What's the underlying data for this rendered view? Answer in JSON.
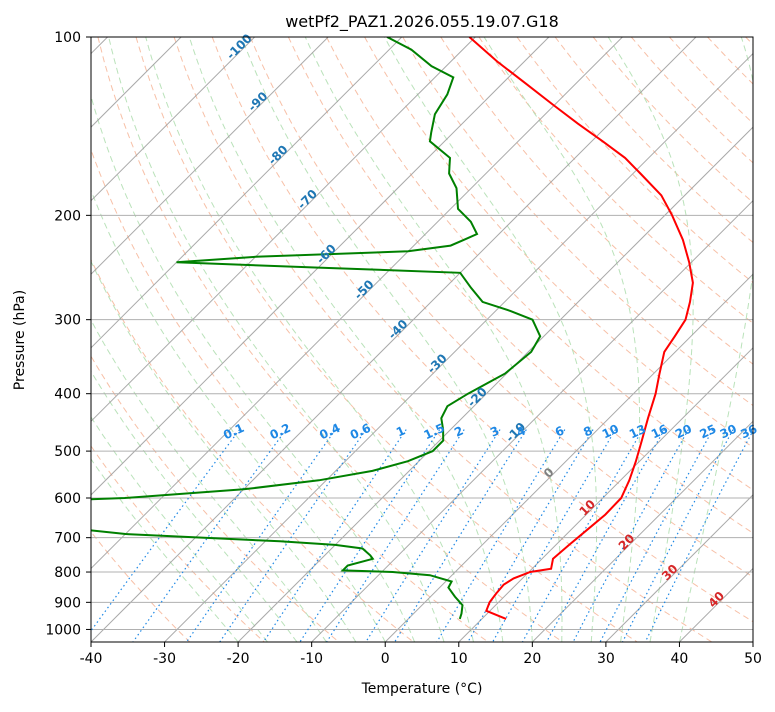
{
  "chart_data": {
    "type": "skew-t",
    "title": "wetPf2_PAZ1.2026.055.19.07.G18",
    "xlabel": "Temperature (°C)",
    "ylabel": "Pressure (hPa)",
    "xlim": [
      -40,
      50
    ],
    "ylim": [
      1050,
      100
    ],
    "y_scale": "log",
    "x_ticks": [
      -40,
      -30,
      -20,
      -10,
      0,
      10,
      20,
      30,
      40,
      50
    ],
    "y_ticks": [
      100,
      200,
      300,
      400,
      500,
      600,
      700,
      800,
      900,
      1000
    ],
    "grid": true,
    "colors": {
      "temperature": "#ff0000",
      "dewpoint": "#008000",
      "dry_adiabat": "#f4a582",
      "moist_adiabat": "#b2dfb2",
      "mixing_ratio": "#1e88e5",
      "isotherm": "#a0a0a0",
      "isotherm_label": "#1f77b4",
      "warm_label": "#d62728",
      "zero_label": "#808080"
    },
    "series": [
      {
        "name": "",
        "role": "temperature",
        "points": [
          [
            960,
            13.3
          ],
          [
            930,
            9.5
          ],
          [
            900,
            8.8
          ],
          [
            870,
            8.5
          ],
          [
            840,
            8.3
          ],
          [
            820,
            8.8
          ],
          [
            800,
            10.2
          ],
          [
            790,
            12.6
          ],
          [
            760,
            11.5
          ],
          [
            720,
            11.8
          ],
          [
            680,
            12.2
          ],
          [
            640,
            12.6
          ],
          [
            600,
            12.5
          ],
          [
            560,
            11.2
          ],
          [
            520,
            9.5
          ],
          [
            480,
            7.5
          ],
          [
            440,
            5.3
          ],
          [
            400,
            3.0
          ],
          [
            370,
            0.8
          ],
          [
            340,
            -1.5
          ],
          [
            320,
            -2.2
          ],
          [
            300,
            -3.0
          ],
          [
            280,
            -4.8
          ],
          [
            260,
            -7.0
          ],
          [
            240,
            -10.3
          ],
          [
            220,
            -14.2
          ],
          [
            200,
            -19.0
          ],
          [
            185,
            -23.2
          ],
          [
            170,
            -29.0
          ],
          [
            160,
            -33.2
          ],
          [
            150,
            -38.5
          ],
          [
            140,
            -44.3
          ],
          [
            130,
            -50.3
          ],
          [
            120,
            -56.7
          ],
          [
            110,
            -63.7
          ],
          [
            100,
            -70.8
          ]
        ]
      },
      {
        "name": "",
        "role": "dewpoint",
        "points": [
          [
            960,
            7.0
          ],
          [
            940,
            6.5
          ],
          [
            910,
            5.5
          ],
          [
            880,
            3.3
          ],
          [
            850,
            1.2
          ],
          [
            830,
            0.8
          ],
          [
            810,
            -3.0
          ],
          [
            800,
            -8.5
          ],
          [
            795,
            -15.5
          ],
          [
            780,
            -15.5
          ],
          [
            760,
            -13.0
          ],
          [
            750,
            -13.8
          ],
          [
            730,
            -15.8
          ],
          [
            720,
            -20.0
          ],
          [
            710,
            -28.0
          ],
          [
            690,
            -50.0
          ],
          [
            670,
            -61.0
          ],
          [
            650,
            -71.0
          ],
          [
            630,
            -68.0
          ],
          [
            615,
            -78.0
          ],
          [
            600,
            -55.0
          ],
          [
            580,
            -40.0
          ],
          [
            560,
            -31.0
          ],
          [
            540,
            -25.0
          ],
          [
            520,
            -21.5
          ],
          [
            500,
            -19.5
          ],
          [
            480,
            -19.5
          ],
          [
            460,
            -21.0
          ],
          [
            440,
            -22.8
          ],
          [
            420,
            -23.6
          ],
          [
            400,
            -22.5
          ],
          [
            370,
            -20.2
          ],
          [
            340,
            -19.6
          ],
          [
            320,
            -20.5
          ],
          [
            300,
            -23.8
          ],
          [
            290,
            -28.0
          ],
          [
            280,
            -33.0
          ],
          [
            265,
            -36.5
          ],
          [
            250,
            -40.0
          ],
          [
            245,
            -60.0
          ],
          [
            240,
            -80.0
          ],
          [
            235,
            -70.0
          ],
          [
            230,
            -50.0
          ],
          [
            225,
            -45.0
          ],
          [
            220,
            -44.0
          ],
          [
            215,
            -43.0
          ],
          [
            205,
            -45.5
          ],
          [
            195,
            -49.0
          ],
          [
            180,
            -52.0
          ],
          [
            170,
            -55.0
          ],
          [
            165,
            -56.0
          ],
          [
            160,
            -57.0
          ],
          [
            150,
            -62.0
          ],
          [
            145,
            -63.0
          ],
          [
            135,
            -65.0
          ],
          [
            125,
            -66.0
          ],
          [
            117,
            -67.5
          ],
          [
            112,
            -72.0
          ],
          [
            105,
            -77.0
          ],
          [
            100,
            -82.0
          ]
        ]
      }
    ],
    "isotherm_labels": [
      "-100",
      "-90",
      "-80",
      "-70",
      "-60",
      "-50",
      "-40",
      "-30",
      "-20",
      "-10",
      "0",
      "10",
      "20",
      "30",
      "40"
    ],
    "mixing_ratio_labels": [
      "0.1",
      "0.2",
      "0.4",
      "0.6",
      "1",
      "1.5",
      "2",
      "3",
      "4",
      "6",
      "8",
      "10",
      "13",
      "16",
      "20",
      "25",
      "30",
      "36"
    ]
  }
}
